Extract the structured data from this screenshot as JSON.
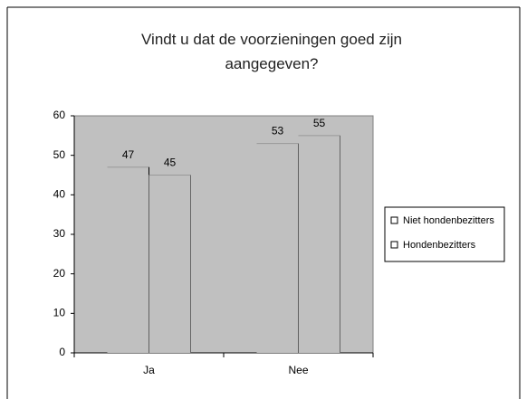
{
  "chart_data": {
    "type": "bar",
    "title": "Vindt u dat de voorzieningen goed zijn aangegeven?",
    "categories": [
      "Ja",
      "Nee"
    ],
    "series": [
      {
        "name": "Niet hondenbezitters",
        "color": "#c0c0c0",
        "values": [
          47,
          53
        ]
      },
      {
        "name": "Hondenbezitters",
        "color": "#c0c0c0",
        "values": [
          45,
          55
        ]
      }
    ],
    "ylim": [
      0,
      60
    ],
    "yticks": [
      0,
      10,
      20,
      30,
      40,
      50,
      60
    ],
    "legend": "right"
  }
}
